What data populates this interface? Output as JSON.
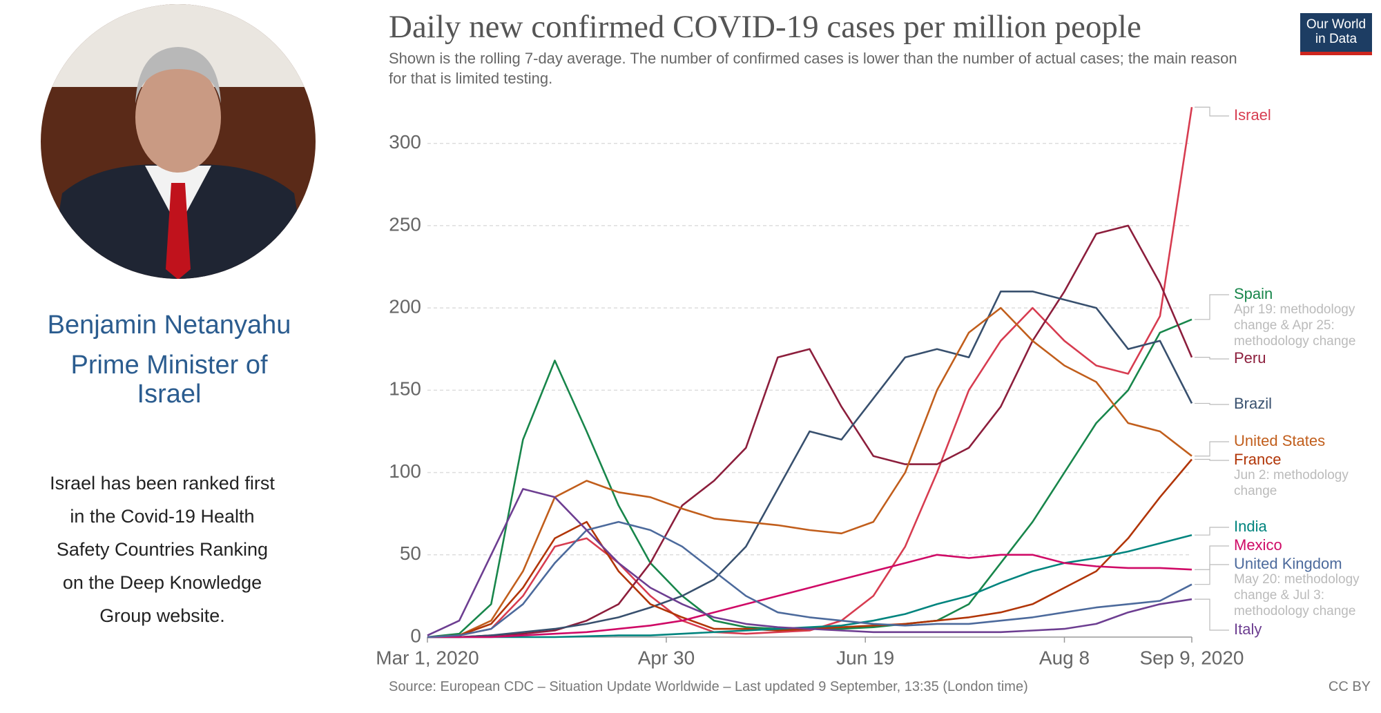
{
  "profile": {
    "name": "Benjamin Netanyahu",
    "role": "Prime Minister of Israel",
    "note": "Israel has been ranked first in the Covid-19 Health Safety Countries Ranking on the Deep Knowledge Group website."
  },
  "chart_data": {
    "type": "line",
    "title": "Daily new confirmed COVID-19 cases per million people",
    "subtitle": "Shown is the rolling 7-day average. The number of confirmed cases is lower than the number of actual cases; the main reason for that is limited testing.",
    "logo": "Our World in Data",
    "source": "Source: European CDC – Situation Update Worldwide – Last updated 9 September, 13:35 (London time)",
    "license": "CC BY",
    "x": [
      0,
      8,
      16,
      24,
      32,
      40,
      48,
      56,
      64,
      72,
      80,
      88,
      96,
      104,
      112,
      120,
      128,
      136,
      144,
      152,
      160,
      168,
      176,
      184,
      192
    ],
    "xlim": [
      0,
      192
    ],
    "xticks": [
      {
        "value": 0,
        "label": "Mar 1, 2020"
      },
      {
        "value": 60,
        "label": "Apr 30"
      },
      {
        "value": 110,
        "label": "Jun 19"
      },
      {
        "value": 160,
        "label": "Aug 8"
      },
      {
        "value": 192,
        "label": "Sep 9, 2020"
      }
    ],
    "ylim": [
      0,
      320
    ],
    "yticks": [
      0,
      50,
      100,
      150,
      200,
      250,
      300
    ],
    "grid": true,
    "series": [
      {
        "name": "Israel",
        "color": "#d73c50",
        "values": [
          0,
          1,
          5,
          25,
          55,
          60,
          45,
          25,
          10,
          3,
          2,
          3,
          4,
          10,
          25,
          55,
          100,
          150,
          180,
          200,
          180,
          165,
          160,
          195,
          322
        ]
      },
      {
        "name": "Spain",
        "color": "#18864b",
        "note": "Apr 19: methodology change & Apr 25: methodology change",
        "values": [
          0,
          2,
          20,
          120,
          168,
          125,
          80,
          45,
          25,
          10,
          6,
          5,
          5,
          5,
          6,
          8,
          10,
          20,
          45,
          70,
          100,
          130,
          150,
          185,
          193
        ]
      },
      {
        "name": "Peru",
        "color": "#8c1e3c",
        "values": [
          0,
          0,
          1,
          2,
          4,
          10,
          20,
          45,
          80,
          95,
          115,
          170,
          175,
          140,
          110,
          105,
          105,
          115,
          140,
          180,
          210,
          245,
          250,
          215,
          170
        ]
      },
      {
        "name": "Brazil",
        "color": "#38506e",
        "values": [
          0,
          0,
          1,
          3,
          5,
          8,
          12,
          18,
          25,
          35,
          55,
          90,
          125,
          120,
          145,
          170,
          175,
          170,
          210,
          210,
          205,
          200,
          175,
          180,
          142
        ]
      },
      {
        "name": "United States",
        "color": "#c15e1c",
        "values": [
          0,
          1,
          10,
          40,
          85,
          95,
          88,
          85,
          78,
          72,
          70,
          68,
          65,
          63,
          70,
          100,
          150,
          185,
          200,
          180,
          165,
          155,
          130,
          125,
          110
        ]
      },
      {
        "name": "France",
        "color": "#b13507",
        "note": "Jun 2: methodology change",
        "values": [
          0,
          1,
          8,
          30,
          60,
          70,
          40,
          20,
          12,
          5,
          5,
          4,
          5,
          6,
          7,
          8,
          10,
          12,
          15,
          20,
          30,
          40,
          60,
          85,
          108
        ]
      },
      {
        "name": "India",
        "color": "#00847e",
        "values": [
          0,
          0,
          0,
          0,
          0,
          0.5,
          1,
          1,
          2,
          3,
          4,
          5,
          6,
          7,
          10,
          14,
          20,
          25,
          33,
          40,
          45,
          48,
          52,
          57,
          62
        ]
      },
      {
        "name": "Mexico",
        "color": "#cf0a66",
        "values": [
          0,
          0,
          0,
          1,
          2,
          3,
          5,
          7,
          10,
          15,
          20,
          25,
          30,
          35,
          40,
          45,
          50,
          48,
          50,
          50,
          45,
          43,
          42,
          42,
          41
        ]
      },
      {
        "name": "United Kingdom",
        "color": "#4c6a9c",
        "note": "May 20: methodology change & Jul 3: methodology change",
        "values": [
          0,
          1,
          5,
          20,
          45,
          65,
          70,
          65,
          55,
          40,
          25,
          15,
          12,
          10,
          8,
          7,
          8,
          8,
          10,
          12,
          15,
          18,
          20,
          22,
          32
        ]
      },
      {
        "name": "Italy",
        "color": "#6d3e91",
        "values": [
          1,
          10,
          50,
          90,
          85,
          65,
          45,
          30,
          20,
          12,
          8,
          6,
          5,
          4,
          3,
          3,
          3,
          3,
          3,
          4,
          5,
          8,
          15,
          20,
          23
        ]
      }
    ]
  }
}
